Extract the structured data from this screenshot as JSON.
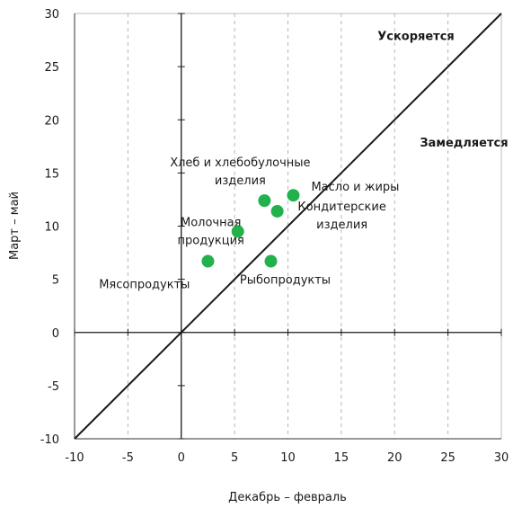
{
  "chart_data": {
    "type": "scatter",
    "title": "",
    "xlabel": "Декабрь – февраль",
    "ylabel": "Март – май",
    "xlim": [
      -10,
      30
    ],
    "ylim": [
      -10,
      30
    ],
    "xticks": [
      -10,
      -5,
      0,
      5,
      10,
      15,
      20,
      25,
      30
    ],
    "yticks": [
      -10,
      -5,
      0,
      5,
      10,
      15,
      20,
      25,
      30
    ],
    "xtick_labels": [
      "-10",
      "-5",
      "0",
      "5",
      "10",
      "15",
      "20",
      "25",
      "30"
    ],
    "ytick_labels": [
      "-10",
      "-5",
      "0",
      "5",
      "10",
      "15",
      "20",
      "25",
      "30"
    ],
    "grid": "dashed vertical",
    "legend": "none",
    "point_color": "#22b14c",
    "reference_line": {
      "type": "y=x"
    },
    "annotations": [
      {
        "text": "Ускоряется",
        "x": 22,
        "y": 27.5
      },
      {
        "text": "Замедляется",
        "x": 26.5,
        "y": 17.5
      }
    ],
    "points": [
      {
        "x": 2.5,
        "y": 6.7,
        "label": [
          "Мясопродукты"
        ]
      },
      {
        "x": 5.3,
        "y": 9.5,
        "label": [
          "Молочная",
          "продукция"
        ]
      },
      {
        "x": 7.8,
        "y": 12.4,
        "label": [
          "Хлеб и хлебобулочные",
          "изделия"
        ]
      },
      {
        "x": 8.4,
        "y": 6.7,
        "label": [
          "Рыбопродукты"
        ]
      },
      {
        "x": 9.0,
        "y": 11.4,
        "label": [
          "Кондитерские",
          "изделия"
        ]
      },
      {
        "x": 10.5,
        "y": 12.9,
        "label": [
          "Масло и жиры"
        ]
      }
    ]
  }
}
